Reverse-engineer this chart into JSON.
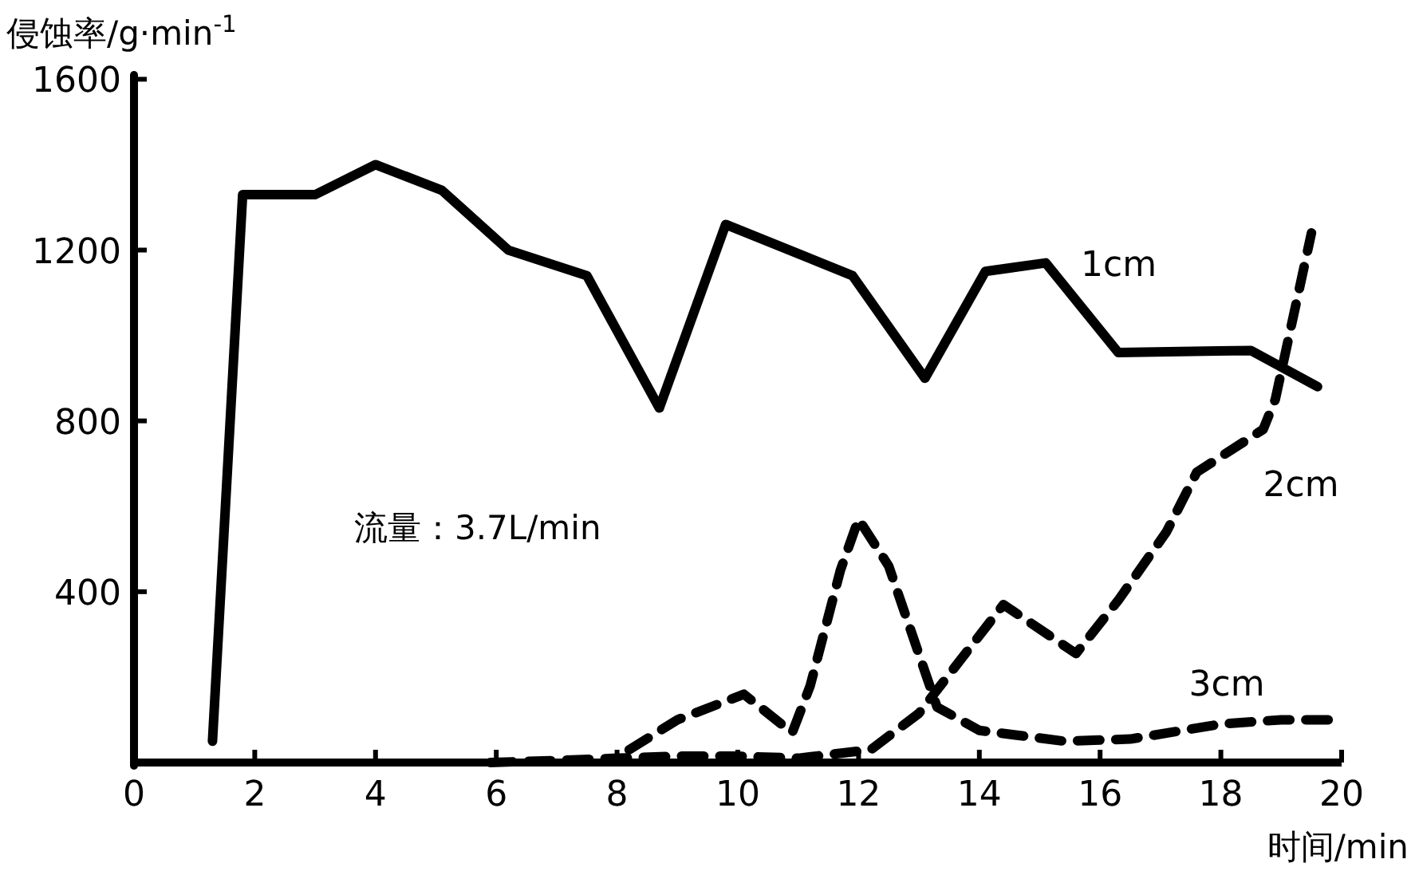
{
  "chart_data": {
    "type": "line",
    "ylabel": "侵蚀率/g·min$^{-1}$",
    "xlabel": "时间/min",
    "xlim": [
      0,
      20
    ],
    "ylim": [
      0,
      1610
    ],
    "xticks": [
      0,
      2,
      4,
      6,
      8,
      10,
      12,
      14,
      16,
      18,
      20
    ],
    "yticks": [
      400,
      800,
      1200,
      1600
    ],
    "grid": false,
    "annotations": [
      "流量：3.7L/min"
    ],
    "series": [
      {
        "name": "1cm",
        "color": "#000000",
        "line_style": "solid",
        "x": [
          1.3,
          1.8,
          3.0,
          4.0,
          5.1,
          6.2,
          7.5,
          8.7,
          9.8,
          11.9,
          13.1,
          14.1,
          15.1,
          16.3,
          18.5,
          19.6
        ],
        "values": [
          50,
          1330,
          1330,
          1400,
          1340,
          1200,
          1140,
          830,
          1260,
          1140,
          900,
          1150,
          1170,
          960,
          965,
          880
        ]
      },
      {
        "name": "2cm",
        "color": "#000000",
        "line_style": "dashed",
        "x": [
          5.9,
          7,
          8,
          9,
          10,
          11,
          12.2,
          13.0,
          14.4,
          15.6,
          16.3,
          17.1,
          17.6,
          18.7,
          18.9,
          19.5
        ],
        "values": [
          0,
          5,
          10,
          15,
          15,
          10,
          30,
          115,
          370,
          255,
          380,
          540,
          680,
          780,
          850,
          1240
        ]
      },
      {
        "name": "3cm",
        "color": "#000000",
        "line_style": "dashed",
        "x": [
          8.2,
          9,
          10.1,
          10.9,
          11.2,
          11.7,
          12.0,
          12.5,
          13.3,
          14,
          15.4,
          16.5,
          18,
          19,
          19.9
        ],
        "values": [
          30,
          100,
          160,
          70,
          180,
          450,
          570,
          460,
          130,
          75,
          50,
          55,
          90,
          100,
          100
        ]
      }
    ]
  }
}
